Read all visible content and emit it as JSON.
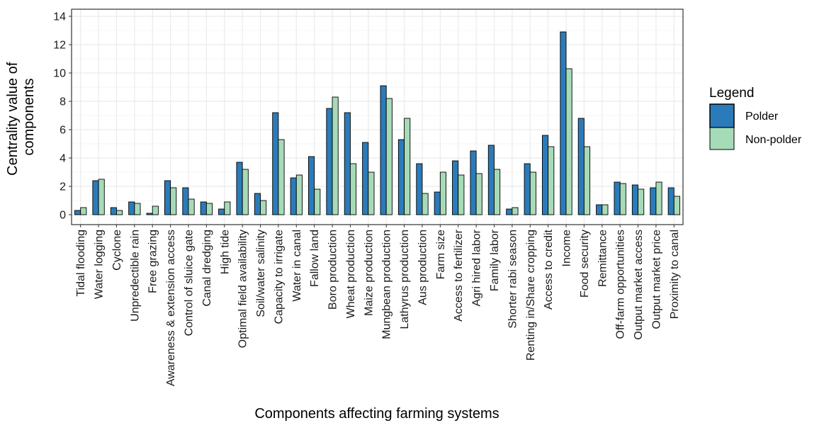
{
  "chart_data": {
    "type": "bar",
    "title": "",
    "xlabel": "Components affecting farming systems",
    "ylabel": "Centrality value of components",
    "ylabel_lines": [
      "Centrality value of",
      "components"
    ],
    "ylim": [
      -0.7,
      14.5
    ],
    "yticks": [
      0,
      2,
      4,
      6,
      8,
      10,
      12,
      14
    ],
    "grid": true,
    "legend": {
      "title": "Legend",
      "position": "right"
    },
    "categories": [
      "Tidal flooding",
      "Water logging",
      "Cyclone",
      "Unpredectible rain",
      "Free grazing",
      "Awareness & extension access",
      "Control of sluice gate",
      "Canal dredging",
      "High tide",
      "Optimal field availability",
      "Soil/water salinity",
      "Capacity to irrigate",
      "Water in canal",
      "Fallow land",
      "Boro production",
      "Wheat production",
      "Maize production",
      "Mungbean production",
      "Lathyrus production",
      "Aus production",
      "Farm size",
      "Access to fertilizer",
      "Agri hired labor",
      "Family labor",
      "Shorter rabi season",
      "Renting in/Share cropping",
      "Access to credit",
      "Income",
      "Food security",
      "Remittance",
      "Off-farm opportunities",
      "Output market access",
      "Output market price",
      "Proximity to canal"
    ],
    "series": [
      {
        "name": "Polder",
        "color": "#2b7bba",
        "values": [
          0.3,
          2.4,
          0.5,
          0.9,
          0.1,
          2.4,
          1.9,
          0.9,
          0.4,
          3.7,
          1.5,
          7.2,
          2.6,
          4.1,
          7.5,
          7.2,
          5.1,
          9.1,
          5.3,
          3.6,
          1.6,
          3.8,
          4.5,
          4.9,
          0.4,
          3.6,
          5.6,
          12.9,
          6.8,
          0.7,
          2.3,
          2.1,
          1.9,
          1.9
        ]
      },
      {
        "name": "Non-polder",
        "color": "#a6dbb7",
        "values": [
          0.5,
          2.5,
          0.3,
          0.8,
          0.6,
          1.9,
          1.1,
          0.8,
          0.9,
          3.2,
          1.0,
          5.3,
          2.8,
          1.8,
          8.3,
          3.6,
          3.0,
          8.2,
          6.8,
          1.5,
          3.0,
          2.8,
          2.9,
          3.2,
          0.5,
          3.0,
          4.8,
          10.3,
          4.8,
          0.7,
          2.2,
          1.8,
          2.3,
          1.3
        ]
      }
    ]
  },
  "colors": {
    "panel_border": "#333333",
    "grid": "#ebebeb",
    "bar_outline": "#000000"
  }
}
